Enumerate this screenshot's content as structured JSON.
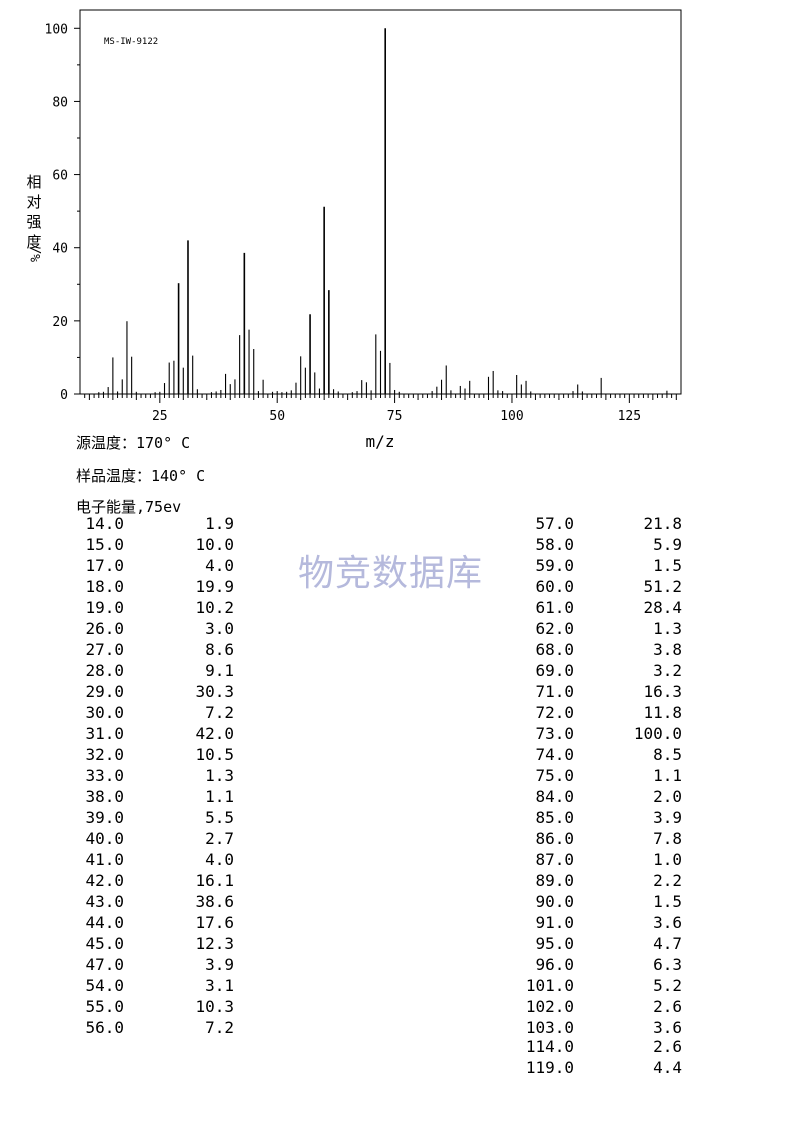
{
  "chart_data": {
    "type": "bar",
    "title": "",
    "annotation": "MS-IW-9122",
    "xlabel": "m/z",
    "ylabel": "相对强度",
    "ylabel_unit": "%/",
    "xlim": [
      8,
      136
    ],
    "ylim": [
      0,
      105
    ],
    "x_ticks": [
      25,
      50,
      75,
      100,
      125
    ],
    "y_ticks": [
      0,
      20,
      40,
      60,
      80,
      100
    ],
    "grid": false,
    "series": [
      {
        "x": [
          12,
          13,
          14,
          15,
          16,
          17,
          18,
          19,
          20,
          24,
          25,
          26,
          27,
          28,
          29,
          30,
          31,
          32,
          33,
          36,
          37,
          38,
          39,
          40,
          41,
          42,
          43,
          44,
          45,
          46,
          47,
          49,
          50,
          51,
          52,
          53,
          54,
          55,
          56,
          57,
          58,
          59,
          60,
          61,
          62,
          63,
          66,
          67,
          68,
          69,
          70,
          71,
          72,
          73,
          74,
          75,
          76,
          83,
          84,
          85,
          86,
          87,
          89,
          90,
          91,
          95,
          96,
          97,
          98,
          101,
          102,
          103,
          104,
          113,
          114,
          115,
          119,
          133
        ],
        "values": [
          0.5,
          0.6,
          1.9,
          10.0,
          0.7,
          4.0,
          19.9,
          10.2,
          0.6,
          0.5,
          0.6,
          3.0,
          8.6,
          9.1,
          30.3,
          7.2,
          42.0,
          10.5,
          1.3,
          0.5,
          0.7,
          1.1,
          5.5,
          2.7,
          4.0,
          16.1,
          38.6,
          17.6,
          12.3,
          0.8,
          3.9,
          0.6,
          0.8,
          0.5,
          0.6,
          1.0,
          3.1,
          10.3,
          7.2,
          21.8,
          5.9,
          1.5,
          51.2,
          28.4,
          1.3,
          0.7,
          0.5,
          0.8,
          3.8,
          3.2,
          1.0,
          16.3,
          11.8,
          100.0,
          8.5,
          1.1,
          0.6,
          0.8,
          2.0,
          3.9,
          7.8,
          1.0,
          2.2,
          1.5,
          3.6,
          4.7,
          6.3,
          1.0,
          0.8,
          5.2,
          2.6,
          3.6,
          0.7,
          0.8,
          2.6,
          0.7,
          4.4,
          0.9
        ]
      }
    ]
  },
  "conditions": {
    "source_temp": "源温度：170° C",
    "sample_temp": "样品温度：140° C",
    "electron_energy": "电子能量,75ev"
  },
  "watermark": "物竞数据库",
  "peak_table": {
    "left": [
      [
        "14.0",
        "1.9"
      ],
      [
        "15.0",
        "10.0"
      ],
      [
        "17.0",
        "4.0"
      ],
      [
        "18.0",
        "19.9"
      ],
      [
        "19.0",
        "10.2"
      ],
      [
        "26.0",
        "3.0"
      ],
      [
        "27.0",
        "8.6"
      ],
      [
        "28.0",
        "9.1"
      ],
      [
        "29.0",
        "30.3"
      ],
      [
        "30.0",
        "7.2"
      ],
      [
        "31.0",
        "42.0"
      ],
      [
        "32.0",
        "10.5"
      ],
      [
        "33.0",
        "1.3"
      ],
      [
        "38.0",
        "1.1"
      ],
      [
        "39.0",
        "5.5"
      ],
      [
        "40.0",
        "2.7"
      ],
      [
        "41.0",
        "4.0"
      ],
      [
        "42.0",
        "16.1"
      ],
      [
        "43.0",
        "38.6"
      ],
      [
        "44.0",
        "17.6"
      ],
      [
        "45.0",
        "12.3"
      ],
      [
        "47.0",
        "3.9"
      ],
      [
        "54.0",
        "3.1"
      ],
      [
        "55.0",
        "10.3"
      ],
      [
        "56.0",
        "7.2"
      ]
    ],
    "right": [
      [
        "57.0",
        "21.8"
      ],
      [
        "58.0",
        "5.9"
      ],
      [
        "59.0",
        "1.5"
      ],
      [
        "60.0",
        "51.2"
      ],
      [
        "61.0",
        "28.4"
      ],
      [
        "62.0",
        "1.3"
      ],
      [
        "68.0",
        "3.8"
      ],
      [
        "69.0",
        "3.2"
      ],
      [
        "71.0",
        "16.3"
      ],
      [
        "72.0",
        "11.8"
      ],
      [
        "73.0",
        "100.0"
      ],
      [
        "74.0",
        "8.5"
      ],
      [
        "75.0",
        "1.1"
      ],
      [
        "84.0",
        "2.0"
      ],
      [
        "85.0",
        "3.9"
      ],
      [
        "86.0",
        "7.8"
      ],
      [
        "87.0",
        "1.0"
      ],
      [
        "89.0",
        "2.2"
      ],
      [
        "90.0",
        "1.5"
      ],
      [
        "91.0",
        "3.6"
      ],
      [
        "95.0",
        "4.7"
      ],
      [
        "96.0",
        "6.3"
      ],
      [
        "101.0",
        "5.2"
      ],
      [
        "102.0",
        "2.6"
      ],
      [
        "103.0",
        "3.6"
      ],
      [
        "114.0",
        "2.6"
      ],
      [
        "119.0",
        "4.4"
      ]
    ]
  }
}
